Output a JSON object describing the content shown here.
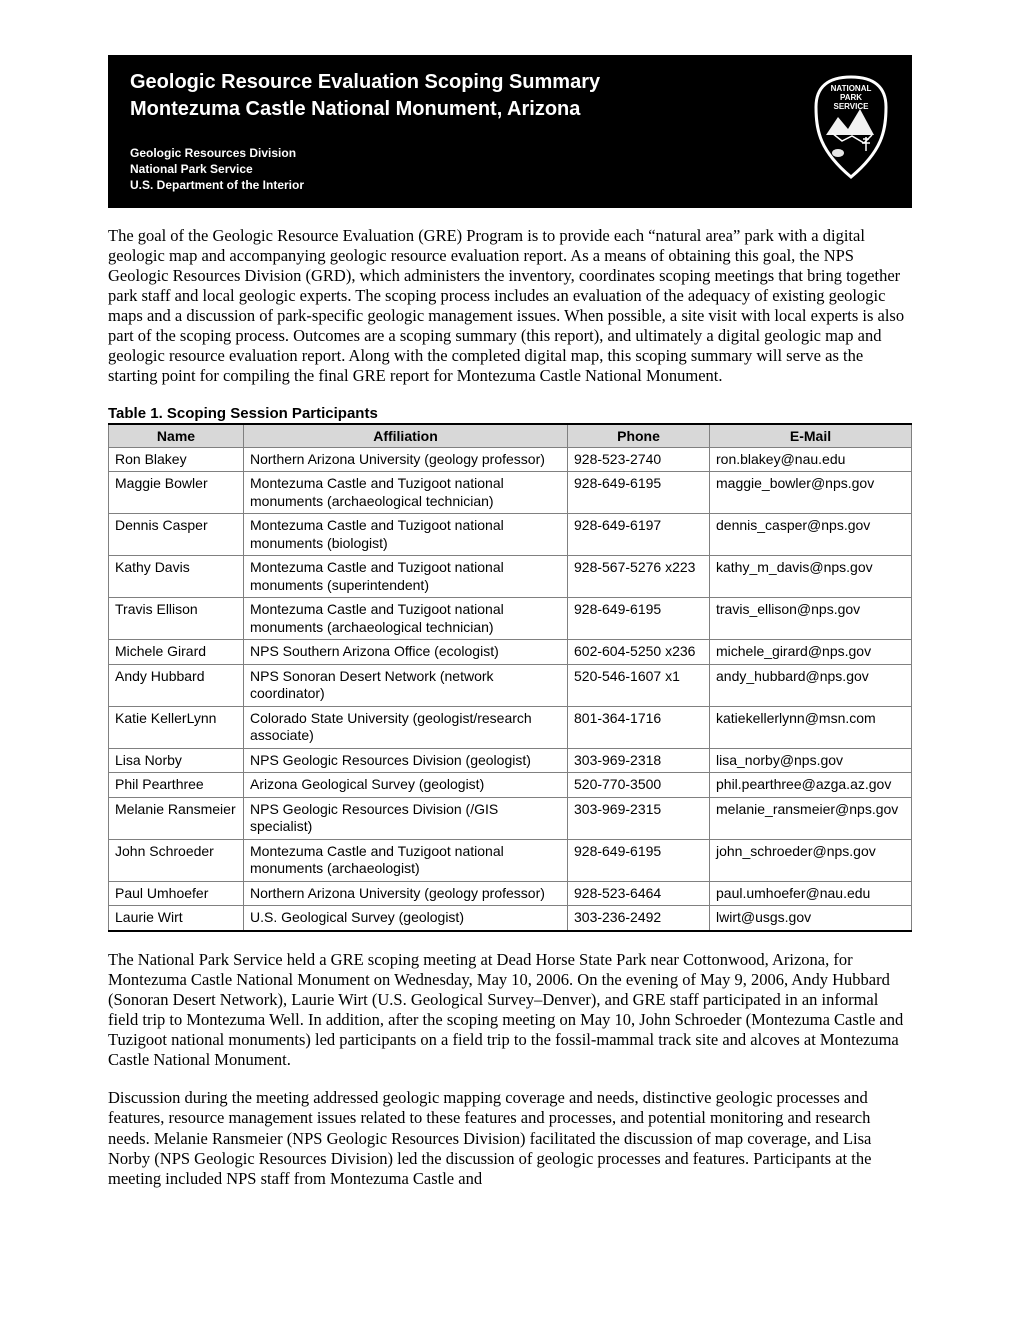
{
  "banner": {
    "title_line1": "Geologic Resource Evaluation Scoping Summary",
    "title_line2": "Montezuma Castle National Monument, Arizona",
    "dept_line1": "Geologic Resources Division",
    "dept_line2": "National Park Service",
    "dept_line3": "U.S. Department of the Interior",
    "logo_text_top": "NATIONAL",
    "logo_text_mid": "PARK",
    "logo_text_bot": "SERVICE"
  },
  "intro_paragraph": "The goal of the Geologic Resource Evaluation (GRE) Program is to provide each “natural area” park with a digital geologic map and accompanying geologic resource evaluation report. As a means of obtaining this goal, the NPS Geologic Resources Division (GRD), which administers the inventory, coordinates scoping meetings that bring together park staff and local geologic experts. The scoping process includes an evaluation of the adequacy of existing geologic maps and a discussion of park-specific geologic management issues. When possible, a site visit with local experts is also part of the scoping process. Outcomes are a scoping summary (this report), and ultimately a digital geologic map and geologic resource evaluation report. Along with the completed digital map, this scoping summary will serve as the starting point for compiling the final GRE report for Montezuma Castle National Monument.",
  "table": {
    "caption": "Table 1. Scoping Session Participants",
    "headers": {
      "name": "Name",
      "affiliation": "Affiliation",
      "phone": "Phone",
      "email": "E-Mail"
    },
    "rows": [
      {
        "name": "Ron Blakey",
        "affiliation": "Northern Arizona University (geology professor)",
        "phone": "928-523-2740",
        "email": "ron.blakey@nau.edu"
      },
      {
        "name": "Maggie Bowler",
        "affiliation": "Montezuma Castle and Tuzigoot national monuments (archaeological technician)",
        "phone": "928-649-6195",
        "email": "maggie_bowler@nps.gov"
      },
      {
        "name": "Dennis Casper",
        "affiliation": "Montezuma Castle and Tuzigoot national monuments (biologist)",
        "phone": "928-649-6197",
        "email": "dennis_casper@nps.gov"
      },
      {
        "name": "Kathy Davis",
        "affiliation": "Montezuma Castle and Tuzigoot national monuments (superintendent)",
        "phone": "928-567-5276 x223",
        "email": "kathy_m_davis@nps.gov"
      },
      {
        "name": "Travis Ellison",
        "affiliation": "Montezuma Castle and Tuzigoot national monuments (archaeological technician)",
        "phone": "928-649-6195",
        "email": "travis_ellison@nps.gov"
      },
      {
        "name": "Michele Girard",
        "affiliation": "NPS Southern Arizona Office (ecologist)",
        "phone": "602-604-5250 x236",
        "email": "michele_girard@nps.gov"
      },
      {
        "name": "Andy Hubbard",
        "affiliation": "NPS Sonoran Desert Network (network coordinator)",
        "phone": "520-546-1607 x1",
        "email": "andy_hubbard@nps.gov"
      },
      {
        "name": "Katie KellerLynn",
        "affiliation": "Colorado State University (geologist/research associate)",
        "phone": "801-364-1716",
        "email": "katiekellerlynn@msn.com"
      },
      {
        "name": "Lisa Norby",
        "affiliation": "NPS Geologic Resources Division (geologist)",
        "phone": "303-969-2318",
        "email": "lisa_norby@nps.gov"
      },
      {
        "name": "Phil Pearthree",
        "affiliation": "Arizona Geological Survey (geologist)",
        "phone": "520-770-3500",
        "email": "phil.pearthree@azga.az.gov"
      },
      {
        "name": "Melanie Ransmeier",
        "affiliation": "NPS Geologic Resources Division (/GIS specialist)",
        "phone": "303-969-2315",
        "email": "melanie_ransmeier@nps.gov"
      },
      {
        "name": "John Schroeder",
        "affiliation": "Montezuma Castle and Tuzigoot national monuments (archaeologist)",
        "phone": "928-649-6195",
        "email": "john_schroeder@nps.gov"
      },
      {
        "name": "Paul Umhoefer",
        "affiliation": "Northern Arizona University (geology professor)",
        "phone": "928-523-6464",
        "email": "paul.umhoefer@nau.edu"
      },
      {
        "name": "Laurie Wirt",
        "affiliation": "U.S. Geological Survey (geologist)",
        "phone": "303-236-2492",
        "email": "lwirt@usgs.gov"
      }
    ]
  },
  "para2": "The National Park Service held a GRE scoping meeting at Dead Horse State Park near Cottonwood, Arizona, for Montezuma Castle National Monument on Wednesday, May 10, 2006. On the evening of May 9, 2006, Andy Hubbard (Sonoran Desert Network), Laurie Wirt (U.S. Geological Survey–Denver), and GRE staff participated in an informal field trip to Montezuma Well. In addition, after the scoping meeting on May 10, John Schroeder (Montezuma Castle and Tuzigoot national monuments) led participants on a field trip to the fossil-mammal track site and alcoves at Montezuma Castle National Monument.",
  "para3": "Discussion during the meeting addressed geologic mapping coverage and needs, distinctive geologic processes and features, resource management issues related to these features and processes, and potential monitoring and research needs. Melanie Ransmeier (NPS Geologic Resources Division) facilitated the discussion of map coverage, and Lisa Norby (NPS Geologic Resources Division) led the discussion of geologic processes and features. Participants at the meeting included NPS staff from Montezuma Castle and"
}
